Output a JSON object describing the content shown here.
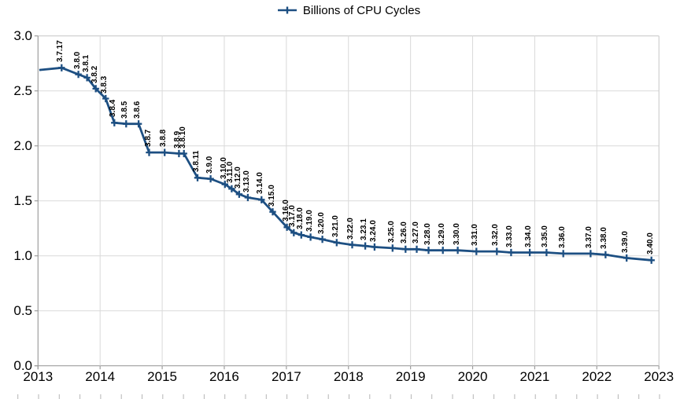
{
  "legend": {
    "label": "Billions of CPU Cycles"
  },
  "colors": {
    "series": "#1d4f82",
    "gridline": "#d9d9d9",
    "axis": "#9e9e9e",
    "frame": "#c6c6c6",
    "minor_tick": "#b5b5b5",
    "text": "#000000",
    "background": "#ffffff"
  },
  "chart_data": {
    "type": "line",
    "title": "",
    "legend_position": "top-center",
    "grid": true,
    "marker": "plus",
    "xlabel": "",
    "ylabel": "",
    "x_axis": {
      "min": 2013,
      "max": 2023,
      "tick_labels": [
        "2013",
        "2014",
        "2015",
        "2016",
        "2017",
        "2018",
        "2019",
        "2020",
        "2021",
        "2022",
        "2023"
      ]
    },
    "y_axis": {
      "min": 0.0,
      "max": 3.0,
      "step": 0.5,
      "tick_labels": [
        "3.0",
        "2.5",
        "2.0",
        "1.5",
        "1.0",
        "0.5",
        "0.0"
      ]
    },
    "series": [
      {
        "name": "Billions of CPU Cycles",
        "points": [
          {
            "label": "",
            "x": 2013.02,
            "v": 2.69
          },
          {
            "label": "3.7.17",
            "x": 2013.38,
            "v": 2.71
          },
          {
            "label": "3.8.0",
            "x": 2013.65,
            "v": 2.65
          },
          {
            "label": "3.8.1",
            "x": 2013.79,
            "v": 2.62
          },
          {
            "label": "3.8.2",
            "x": 2013.93,
            "v": 2.52
          },
          {
            "label": "3.8.3",
            "x": 2014.09,
            "v": 2.43
          },
          {
            "label": "3.8.4",
            "x": 2014.23,
            "v": 2.21
          },
          {
            "label": "3.8.5",
            "x": 2014.42,
            "v": 2.2
          },
          {
            "label": "3.8.6",
            "x": 2014.62,
            "v": 2.2
          },
          {
            "label": "3.8.7",
            "x": 2014.79,
            "v": 1.94
          },
          {
            "label": "3.8.8",
            "x": 2015.04,
            "v": 1.94
          },
          {
            "label": "3.8.9",
            "x": 2015.27,
            "v": 1.93
          },
          {
            "label": "3.8.10",
            "x": 2015.35,
            "v": 1.93
          },
          {
            "label": "3.8.11",
            "x": 2015.57,
            "v": 1.71
          },
          {
            "label": "3.9.0",
            "x": 2015.78,
            "v": 1.7
          },
          {
            "label": "3.10.0",
            "x": 2016.01,
            "v": 1.65
          },
          {
            "label": "3.11.0",
            "x": 2016.12,
            "v": 1.61
          },
          {
            "label": "3.12.0",
            "x": 2016.24,
            "v": 1.56
          },
          {
            "label": "3.13.0",
            "x": 2016.38,
            "v": 1.53
          },
          {
            "label": "3.14.0",
            "x": 2016.6,
            "v": 1.51
          },
          {
            "label": "3.15.0",
            "x": 2016.78,
            "v": 1.4
          },
          {
            "label": "3.16.0",
            "x": 2017.01,
            "v": 1.26
          },
          {
            "label": "3.17.0",
            "x": 2017.12,
            "v": 1.21
          },
          {
            "label": "3.18.0",
            "x": 2017.24,
            "v": 1.19
          },
          {
            "label": "3.19.0",
            "x": 2017.39,
            "v": 1.17
          },
          {
            "label": "3.20.0",
            "x": 2017.58,
            "v": 1.15
          },
          {
            "label": "3.21.0",
            "x": 2017.81,
            "v": 1.12
          },
          {
            "label": "3.22.0",
            "x": 2018.06,
            "v": 1.1
          },
          {
            "label": "3.23.1",
            "x": 2018.27,
            "v": 1.09
          },
          {
            "label": "3.24.0",
            "x": 2018.42,
            "v": 1.08
          },
          {
            "label": "3.25.0",
            "x": 2018.71,
            "v": 1.07
          },
          {
            "label": "3.26.0",
            "x": 2018.92,
            "v": 1.06
          },
          {
            "label": "3.27.0",
            "x": 2019.1,
            "v": 1.06
          },
          {
            "label": "3.28.0",
            "x": 2019.29,
            "v": 1.05
          },
          {
            "label": "3.29.0",
            "x": 2019.52,
            "v": 1.05
          },
          {
            "label": "3.30.0",
            "x": 2019.76,
            "v": 1.05
          },
          {
            "label": "3.31.0",
            "x": 2020.06,
            "v": 1.04
          },
          {
            "label": "3.32.0",
            "x": 2020.39,
            "v": 1.04
          },
          {
            "label": "3.33.0",
            "x": 2020.62,
            "v": 1.03
          },
          {
            "label": "3.34.0",
            "x": 2020.92,
            "v": 1.03
          },
          {
            "label": "3.35.0",
            "x": 2021.19,
            "v": 1.03
          },
          {
            "label": "3.36.0",
            "x": 2021.46,
            "v": 1.02
          },
          {
            "label": "3.37.0",
            "x": 2021.9,
            "v": 1.02
          },
          {
            "label": "3.38.0",
            "x": 2022.14,
            "v": 1.01
          },
          {
            "label": "3.39.0",
            "x": 2022.48,
            "v": 0.98
          },
          {
            "label": "3.40.0",
            "x": 2022.88,
            "v": 0.96
          }
        ]
      }
    ]
  }
}
